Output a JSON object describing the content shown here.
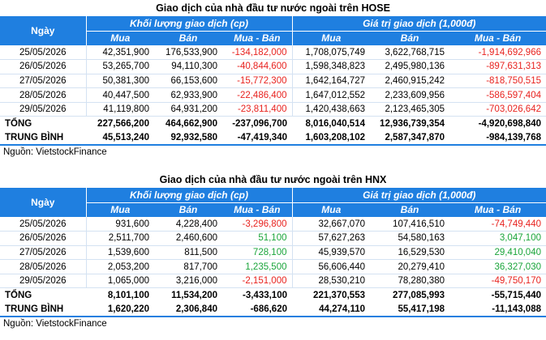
{
  "source_label": "Nguồn: VietstockFinance",
  "headers": {
    "day": "Ngày",
    "volume_group": "Khối lượng giao dịch (cp)",
    "value_group": "Giá trị giao dịch (1,000đ)",
    "buy": "Mua",
    "sell": "Bán",
    "net": "Mua - Bán"
  },
  "hose": {
    "title": "Giao dịch của nhà đầu tư nước ngoài trên HOSE",
    "rows": [
      {
        "date": "25/05/2026",
        "vol_buy": "42,351,900",
        "vol_sell": "176,533,900",
        "vol_net": "-134,182,000",
        "val_buy": "1,708,075,749",
        "val_sell": "3,622,768,715",
        "val_net": "-1,914,692,966"
      },
      {
        "date": "26/05/2026",
        "vol_buy": "53,265,700",
        "vol_sell": "94,110,300",
        "vol_net": "-40,844,600",
        "val_buy": "1,598,348,823",
        "val_sell": "2,495,980,136",
        "val_net": "-897,631,313"
      },
      {
        "date": "27/05/2026",
        "vol_buy": "50,381,300",
        "vol_sell": "66,153,600",
        "vol_net": "-15,772,300",
        "val_buy": "1,642,164,727",
        "val_sell": "2,460,915,242",
        "val_net": "-818,750,515"
      },
      {
        "date": "28/05/2026",
        "vol_buy": "40,447,500",
        "vol_sell": "62,933,900",
        "vol_net": "-22,486,400",
        "val_buy": "1,647,012,552",
        "val_sell": "2,233,609,956",
        "val_net": "-586,597,404"
      },
      {
        "date": "29/05/2026",
        "vol_buy": "41,119,800",
        "vol_sell": "64,931,200",
        "vol_net": "-23,811,400",
        "val_buy": "1,420,438,663",
        "val_sell": "2,123,465,305",
        "val_net": "-703,026,642"
      }
    ],
    "total": {
      "label": "TỔNG",
      "vol_buy": "227,566,200",
      "vol_sell": "464,662,900",
      "vol_net": "-237,096,700",
      "val_buy": "8,016,040,514",
      "val_sell": "12,936,739,354",
      "val_net": "-4,920,698,840"
    },
    "average": {
      "label": "TRUNG BÌNH",
      "vol_buy": "45,513,240",
      "vol_sell": "92,932,580",
      "vol_net": "-47,419,340",
      "val_buy": "1,603,208,102",
      "val_sell": "2,587,347,870",
      "val_net": "-984,139,768"
    }
  },
  "hnx": {
    "title": "Giao dịch của nhà đầu tư nước ngoài trên HNX",
    "rows": [
      {
        "date": "25/05/2026",
        "vol_buy": "931,600",
        "vol_sell": "4,228,400",
        "vol_net": "-3,296,800",
        "val_buy": "32,667,070",
        "val_sell": "107,416,510",
        "val_net": "-74,749,440"
      },
      {
        "date": "26/05/2026",
        "vol_buy": "2,511,700",
        "vol_sell": "2,460,600",
        "vol_net": "51,100",
        "val_buy": "57,627,263",
        "val_sell": "54,580,163",
        "val_net": "3,047,100"
      },
      {
        "date": "27/05/2026",
        "vol_buy": "1,539,600",
        "vol_sell": "811,500",
        "vol_net": "728,100",
        "val_buy": "45,939,570",
        "val_sell": "16,529,530",
        "val_net": "29,410,040"
      },
      {
        "date": "28/05/2026",
        "vol_buy": "2,053,200",
        "vol_sell": "817,700",
        "vol_net": "1,235,500",
        "val_buy": "56,606,440",
        "val_sell": "20,279,410",
        "val_net": "36,327,030"
      },
      {
        "date": "29/05/2026",
        "vol_buy": "1,065,000",
        "vol_sell": "3,216,000",
        "vol_net": "-2,151,000",
        "val_buy": "28,530,210",
        "val_sell": "78,280,380",
        "val_net": "-49,750,170"
      }
    ],
    "total": {
      "label": "TỔNG",
      "vol_buy": "8,101,100",
      "vol_sell": "11,534,200",
      "vol_net": "-3,433,100",
      "val_buy": "221,370,553",
      "val_sell": "277,085,993",
      "val_net": "-55,715,440"
    },
    "average": {
      "label": "TRUNG BÌNH",
      "vol_buy": "1,620,220",
      "vol_sell": "2,306,840",
      "vol_net": "-686,620",
      "val_buy": "44,274,110",
      "val_sell": "55,417,198",
      "val_net": "-11,143,088"
    }
  },
  "colors": {
    "header_bg": "#1f7fe0",
    "negative": "#e8231f",
    "positive": "#1aa53a"
  }
}
